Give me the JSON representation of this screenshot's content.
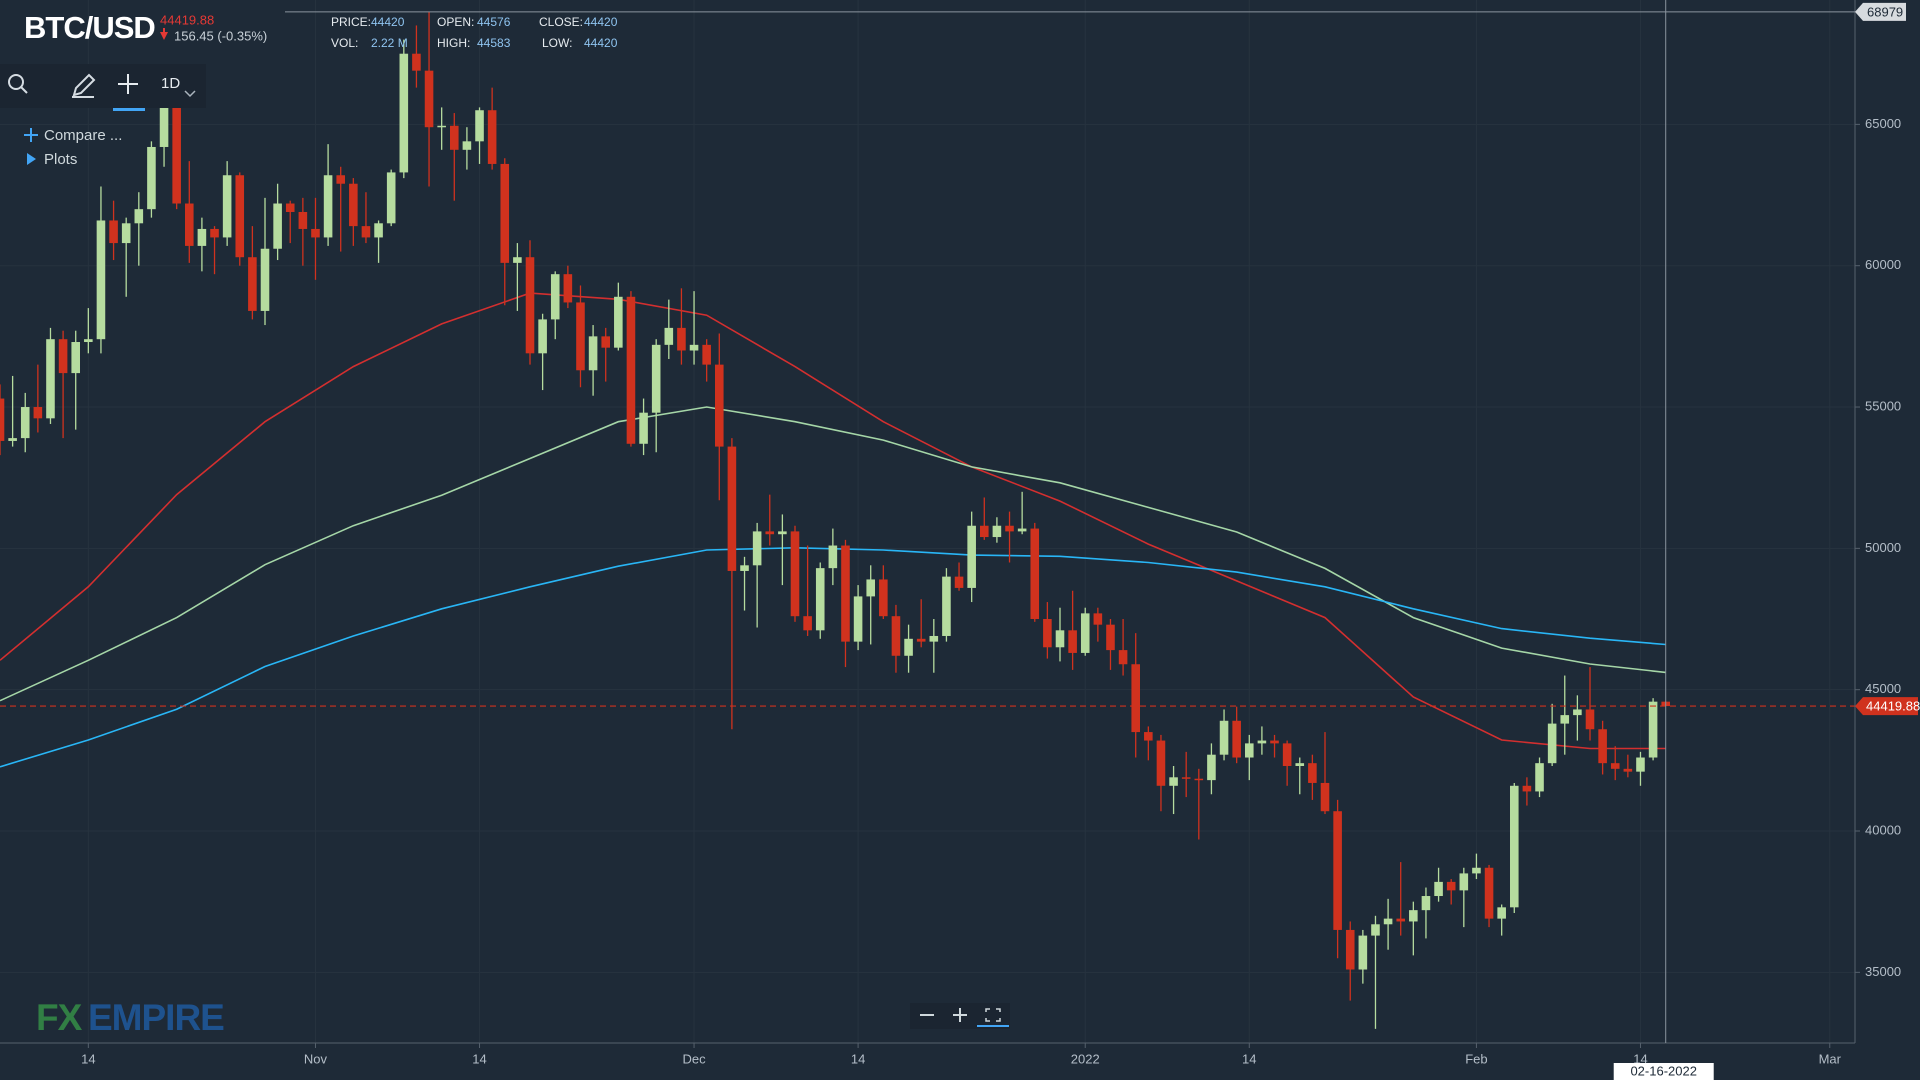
{
  "header": {
    "symbol": "BTC/USD",
    "last": "44419.88",
    "change": "156.45 (-0.35%)",
    "info": {
      "price_label": "PRICE:",
      "price": 44420,
      "open_label": "OPEN:",
      "open": 44576,
      "close_label": "CLOSE:",
      "close": 44420,
      "vol_label": "VOL:",
      "vol": "2.22 M",
      "high_label": "HIGH:",
      "high": 44583,
      "low_label": "LOW:",
      "low": 44420
    }
  },
  "toolbar": {
    "interval": "1D",
    "compare": "Compare ...",
    "plots": "Plots"
  },
  "watermark": {
    "fx": "FX",
    "empire": "EMPIRE"
  },
  "chart_data": {
    "type": "candlestick",
    "grid": true,
    "up_color": "#b6dc9f",
    "down_color": "#d0321e",
    "xlim": [
      "2021-10-07",
      "2022-03-03"
    ],
    "xticks": [
      {
        "value": "2021-10-14",
        "label": "14"
      },
      {
        "value": "2021-11-01",
        "label": "Nov"
      },
      {
        "value": "2021-11-14",
        "label": "14"
      },
      {
        "value": "2021-12-01",
        "label": "Dec"
      },
      {
        "value": "2021-12-14",
        "label": "14"
      },
      {
        "value": "2022-01-01",
        "label": "2022"
      },
      {
        "value": "2022-01-14",
        "label": "14"
      },
      {
        "value": "2022-02-01",
        "label": "Feb"
      },
      {
        "value": "2022-02-14",
        "label": "14"
      },
      {
        "value": "2022-03-01",
        "label": "Mar"
      }
    ],
    "ylim": [
      32500,
      69400
    ],
    "yticks": [
      35000,
      40000,
      45000,
      50000,
      55000,
      60000,
      65000
    ],
    "x": [
      "2021-10-07",
      "2021-10-08",
      "2021-10-09",
      "2021-10-10",
      "2021-10-11",
      "2021-10-12",
      "2021-10-13",
      "2021-10-14",
      "2021-10-15",
      "2021-10-16",
      "2021-10-17",
      "2021-10-18",
      "2021-10-19",
      "2021-10-20",
      "2021-10-21",
      "2021-10-22",
      "2021-10-23",
      "2021-10-24",
      "2021-10-25",
      "2021-10-26",
      "2021-10-27",
      "2021-10-28",
      "2021-10-29",
      "2021-10-30",
      "2021-10-31",
      "2021-11-01",
      "2021-11-02",
      "2021-11-03",
      "2021-11-04",
      "2021-11-05",
      "2021-11-06",
      "2021-11-07",
      "2021-11-08",
      "2021-11-09",
      "2021-11-10",
      "2021-11-11",
      "2021-11-12",
      "2021-11-13",
      "2021-11-14",
      "2021-11-15",
      "2021-11-16",
      "2021-11-17",
      "2021-11-18",
      "2021-11-19",
      "2021-11-20",
      "2021-11-21",
      "2021-11-22",
      "2021-11-23",
      "2021-11-24",
      "2021-11-25",
      "2021-11-26",
      "2021-11-27",
      "2021-11-28",
      "2021-11-29",
      "2021-11-30",
      "2021-12-01",
      "2021-12-02",
      "2021-12-03",
      "2021-12-04",
      "2021-12-05",
      "2021-12-06",
      "2021-12-07",
      "2021-12-08",
      "2021-12-09",
      "2021-12-10",
      "2021-12-11",
      "2021-12-12",
      "2021-12-13",
      "2021-12-14",
      "2021-12-15",
      "2021-12-16",
      "2021-12-17",
      "2021-12-18",
      "2021-12-19",
      "2021-12-20",
      "2021-12-21",
      "2021-12-22",
      "2021-12-23",
      "2021-12-24",
      "2021-12-25",
      "2021-12-26",
      "2021-12-27",
      "2021-12-28",
      "2021-12-29",
      "2021-12-30",
      "2021-12-31",
      "2022-01-01",
      "2022-01-02",
      "2022-01-03",
      "2022-01-04",
      "2022-01-05",
      "2022-01-06",
      "2022-01-07",
      "2022-01-08",
      "2022-01-09",
      "2022-01-10",
      "2022-01-11",
      "2022-01-12",
      "2022-01-13",
      "2022-01-14",
      "2022-01-15",
      "2022-01-16",
      "2022-01-17",
      "2022-01-18",
      "2022-01-19",
      "2022-01-20",
      "2022-01-21",
      "2022-01-22",
      "2022-01-23",
      "2022-01-24",
      "2022-01-25",
      "2022-01-26",
      "2022-01-27",
      "2022-01-28",
      "2022-01-29",
      "2022-01-30",
      "2022-01-31",
      "2022-02-01",
      "2022-02-02",
      "2022-02-03",
      "2022-02-04",
      "2022-02-05",
      "2022-02-06",
      "2022-02-07",
      "2022-02-08",
      "2022-02-09",
      "2022-02-10",
      "2022-02-11",
      "2022-02-12",
      "2022-02-13",
      "2022-02-14",
      "2022-02-15",
      "2022-02-16"
    ],
    "open": [
      55300,
      53800,
      53900,
      55000,
      54600,
      57400,
      56200,
      57300,
      57400,
      61600,
      60800,
      61500,
      62000,
      64200,
      66000,
      62200,
      60700,
      61300,
      61000,
      63200,
      60300,
      58400,
      60600,
      62200,
      61900,
      61300,
      61000,
      63200,
      62900,
      61400,
      61000,
      61500,
      63300,
      67500,
      66900,
      64900,
      64950,
      64100,
      64400,
      65500,
      63600,
      60100,
      60300,
      56900,
      58100,
      59700,
      58700,
      56300,
      57500,
      57100,
      58900,
      53700,
      54800,
      57200,
      57800,
      57000,
      57200,
      56500,
      53600,
      49200,
      49400,
      50600,
      50500,
      50600,
      47600,
      47100,
      49300,
      50100,
      46700,
      48300,
      48900,
      47600,
      46200,
      46800,
      46700,
      46900,
      49000,
      48600,
      50800,
      50400,
      50800,
      50600,
      50700,
      47500,
      46500,
      47100,
      46300,
      47700,
      47300,
      46400,
      45900,
      43500,
      43200,
      41600,
      41900,
      41850,
      41800,
      42700,
      43900,
      42600,
      43100,
      43200,
      43100,
      42300,
      42400,
      41700,
      40700,
      36500,
      35100,
      36300,
      36700,
      36900,
      36800,
      37200,
      37700,
      38200,
      37900,
      38500,
      38700,
      36900,
      37300,
      41600,
      41400,
      42400,
      43800,
      44100,
      44300,
      43600,
      42400,
      42200,
      42100,
      42600,
      44576
    ],
    "high": [
      55800,
      56100,
      55500,
      56500,
      57800,
      57700,
      57700,
      58500,
      62800,
      62300,
      61700,
      62600,
      64400,
      67000,
      66600,
      63700,
      61700,
      61400,
      63700,
      63300,
      61400,
      62400,
      62900,
      62300,
      62400,
      62400,
      64300,
      63500,
      63100,
      62600,
      61600,
      63400,
      68000,
      68500,
      68979,
      65600,
      65400,
      64900,
      65600,
      66300,
      63800,
      60800,
      60900,
      58300,
      59800,
      60000,
      59300,
      57900,
      57800,
      59400,
      59100,
      55300,
      57400,
      58800,
      59200,
      59100,
      57400,
      57600,
      53900,
      49700,
      50900,
      51900,
      51200,
      50800,
      50100,
      49500,
      50700,
      50300,
      48700,
      49400,
      49400,
      48000,
      47300,
      48200,
      47500,
      49300,
      49500,
      51300,
      51800,
      51100,
      51300,
      52000,
      50900,
      48100,
      47900,
      48500,
      47900,
      47900,
      47500,
      47500,
      47000,
      43700,
      43400,
      42300,
      42800,
      42200,
      43100,
      44300,
      44400,
      43400,
      43700,
      43400,
      43200,
      42600,
      42700,
      43500,
      41100,
      36800,
      36500,
      37000,
      37600,
      38900,
      37500,
      38000,
      38700,
      38300,
      38700,
      39200,
      38800,
      37400,
      41700,
      41900,
      42600,
      44500,
      45500,
      44800,
      45800,
      43900,
      43000,
      42700,
      42800,
      44700,
      44583
    ],
    "low": [
      53300,
      53600,
      53400,
      54100,
      54400,
      53900,
      54200,
      56900,
      56900,
      60200,
      58900,
      60000,
      61700,
      63500,
      62000,
      60100,
      59800,
      59700,
      60700,
      60000,
      58100,
      57900,
      60200,
      60800,
      60000,
      59500,
      60700,
      60500,
      60700,
      60800,
      60100,
      61400,
      63100,
      66300,
      62800,
      64100,
      62300,
      63400,
      63600,
      63400,
      58600,
      58400,
      56500,
      55600,
      57400,
      58500,
      55700,
      55400,
      55900,
      57000,
      53600,
      53300,
      53400,
      56700,
      56500,
      56500,
      55900,
      51700,
      43600,
      47800,
      47200,
      50100,
      48700,
      47400,
      46900,
      46800,
      48700,
      45800,
      46400,
      46600,
      47500,
      45600,
      45600,
      46500,
      45600,
      46700,
      48500,
      48100,
      50300,
      50200,
      49500,
      50500,
      47400,
      46100,
      46000,
      45700,
      46200,
      46700,
      45700,
      45500,
      42600,
      42500,
      40700,
      40600,
      41200,
      39700,
      41300,
      42500,
      42400,
      41800,
      42700,
      42600,
      41600,
      41300,
      41100,
      40600,
      35500,
      34000,
      34600,
      33000,
      35800,
      36300,
      35600,
      36200,
      37500,
      37400,
      36600,
      38300,
      36600,
      36300,
      37100,
      40900,
      41200,
      42300,
      42700,
      43200,
      43200,
      42000,
      41800,
      41900,
      41600,
      42500,
      44420
    ],
    "close": [
      53800,
      53900,
      55000,
      54600,
      57400,
      56200,
      57300,
      57400,
      61600,
      60800,
      61500,
      62000,
      64200,
      66000,
      62200,
      60700,
      61300,
      61000,
      63200,
      60300,
      58400,
      60600,
      62200,
      61900,
      61300,
      61000,
      63200,
      62900,
      61400,
      61000,
      61500,
      63300,
      67500,
      66900,
      64900,
      64950,
      64100,
      64400,
      65500,
      63600,
      60100,
      60300,
      56900,
      58100,
      59700,
      58700,
      56300,
      57500,
      57100,
      58900,
      53700,
      54800,
      57200,
      57800,
      57000,
      57200,
      56500,
      53600,
      49200,
      49400,
      50600,
      50500,
      50600,
      47600,
      47100,
      49300,
      50100,
      46700,
      48300,
      48900,
      47600,
      46200,
      46800,
      46700,
      46900,
      49000,
      48600,
      50800,
      50400,
      50800,
      50600,
      50700,
      47500,
      46500,
      47100,
      46300,
      47700,
      47300,
      46400,
      45900,
      43500,
      43200,
      41600,
      41900,
      41850,
      41800,
      42700,
      43900,
      42600,
      43100,
      43200,
      43100,
      42300,
      42400,
      41700,
      40700,
      36500,
      35100,
      36300,
      36700,
      36900,
      36800,
      37200,
      37700,
      38200,
      37900,
      38500,
      38700,
      36900,
      37300,
      41600,
      41400,
      42400,
      43800,
      44100,
      44300,
      43600,
      42400,
      42200,
      42100,
      42600,
      44576,
      44420
    ],
    "series": [
      {
        "type": "line",
        "color": "#d32f2f",
        "x": [
          "2021-10-07",
          "2021-10-14",
          "2021-10-21",
          "2021-10-28",
          "2021-11-04",
          "2021-11-11",
          "2021-11-18",
          "2021-11-25",
          "2021-12-02",
          "2021-12-09",
          "2021-12-16",
          "2021-12-23",
          "2021-12-30",
          "2022-01-06",
          "2022-01-13",
          "2022-01-20",
          "2022-01-27",
          "2022-02-03",
          "2022-02-10",
          "2022-02-16"
        ],
        "values": [
          46040,
          48640,
          51900,
          54480,
          56430,
          57940,
          59030,
          58810,
          58250,
          56430,
          54480,
          52880,
          51670,
          50150,
          48850,
          47550,
          44740,
          43220,
          42920,
          42920
        ]
      },
      {
        "type": "line",
        "color": "#a5d6a7",
        "x": [
          "2021-10-07",
          "2021-10-14",
          "2021-10-21",
          "2021-10-28",
          "2021-11-04",
          "2021-11-11",
          "2021-11-18",
          "2021-11-25",
          "2021-12-02",
          "2021-12-09",
          "2021-12-16",
          "2021-12-23",
          "2021-12-30",
          "2022-01-06",
          "2022-01-13",
          "2022-01-20",
          "2022-01-27",
          "2022-02-03",
          "2022-02-10",
          "2022-02-16"
        ],
        "values": [
          44610,
          46040,
          47550,
          49420,
          50800,
          51880,
          53180,
          54480,
          55000,
          54480,
          53830,
          52880,
          52320,
          51450,
          50580,
          49290,
          47550,
          46470,
          45910,
          45610
        ]
      },
      {
        "type": "line",
        "color": "#29b6f6",
        "x": [
          "2021-10-07",
          "2021-10-14",
          "2021-10-21",
          "2021-10-28",
          "2021-11-04",
          "2021-11-11",
          "2021-11-18",
          "2021-11-25",
          "2021-12-02",
          "2021-12-09",
          "2021-12-16",
          "2021-12-23",
          "2021-12-30",
          "2022-01-06",
          "2022-01-13",
          "2022-01-20",
          "2022-01-27",
          "2022-02-03",
          "2022-02-10",
          "2022-02-16"
        ],
        "values": [
          42270,
          43220,
          44310,
          45820,
          46900,
          47860,
          48640,
          49370,
          49940,
          50020,
          49940,
          49760,
          49720,
          49500,
          49160,
          48640,
          47860,
          47160,
          46820,
          46600
        ]
      }
    ],
    "last_price": {
      "value": 44419.88,
      "color": "#d0321e"
    },
    "crosshair": {
      "x": "2022-02-16",
      "label": "02-16-2022",
      "y": 68979
    }
  }
}
